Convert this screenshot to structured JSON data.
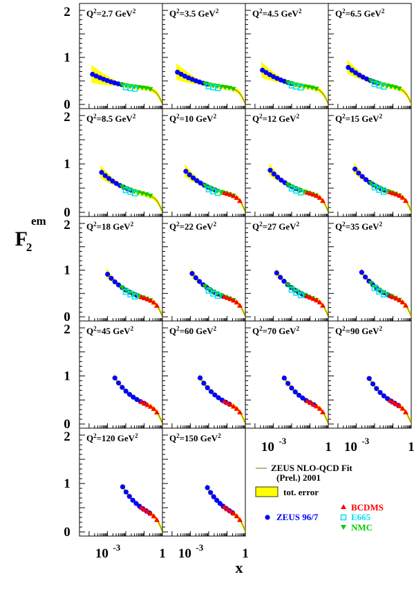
{
  "chart_data": {
    "type": "scatter",
    "y_axis_label": {
      "main": "F",
      "sub": "2",
      "sup": "em"
    },
    "x_axis_label": "x",
    "x_scale": "log",
    "xlim": [
      3e-05,
      1
    ],
    "ylim": [
      0,
      2
    ],
    "y_ticks": [
      "0",
      "1",
      "2"
    ],
    "x_tick_labels": {
      "main": "10",
      "exp": "-3",
      "one": "1"
    },
    "panels": [
      {
        "label": "Q",
        "q2": "2.7"
      },
      {
        "label": "Q",
        "q2": "3.5"
      },
      {
        "label": "Q",
        "q2": "4.5"
      },
      {
        "label": "Q",
        "q2": "6.5"
      },
      {
        "label": "Q",
        "q2": "8.5"
      },
      {
        "label": "Q",
        "q2": "10"
      },
      {
        "label": "Q",
        "q2": "12"
      },
      {
        "label": "Q",
        "q2": "15"
      },
      {
        "label": "Q",
        "q2": "18"
      },
      {
        "label": "Q",
        "q2": "22"
      },
      {
        "label": "Q",
        "q2": "27"
      },
      {
        "label": "Q",
        "q2": "35"
      },
      {
        "label": "Q",
        "q2": "45"
      },
      {
        "label": "Q",
        "q2": "60"
      },
      {
        "label": "Q",
        "q2": "70"
      },
      {
        "label": "Q",
        "q2": "90"
      },
      {
        "label": "Q",
        "q2": "120"
      },
      {
        "label": "Q",
        "q2": "150"
      }
    ],
    "panel_label_format": {
      "prefix": "Q",
      "sup": "2",
      "eq": "=",
      "unit": " GeV",
      "unit_sup": "2"
    },
    "series": [
      {
        "name": "ZEUS 96/7",
        "color": "#0000ff",
        "marker": "circle"
      },
      {
        "name": "BCDMS",
        "color": "#ff0000",
        "marker": "triangle-up"
      },
      {
        "name": "E665",
        "color": "#00e0f0",
        "marker": "open-square"
      },
      {
        "name": "NMC",
        "color": "#00cc00",
        "marker": "triangle-down"
      }
    ],
    "legend": {
      "fit_line": "ZEUS NLO-QCD Fit",
      "fit_line2": "(Prel.) 2001",
      "error_band": "tot. error",
      "zeus": "ZEUS 96/7",
      "bcdms": "BCDMS",
      "e665": "E665",
      "nmc": "NMC"
    },
    "band_color": "#ffff00",
    "fit_color": "#7a6a00"
  }
}
